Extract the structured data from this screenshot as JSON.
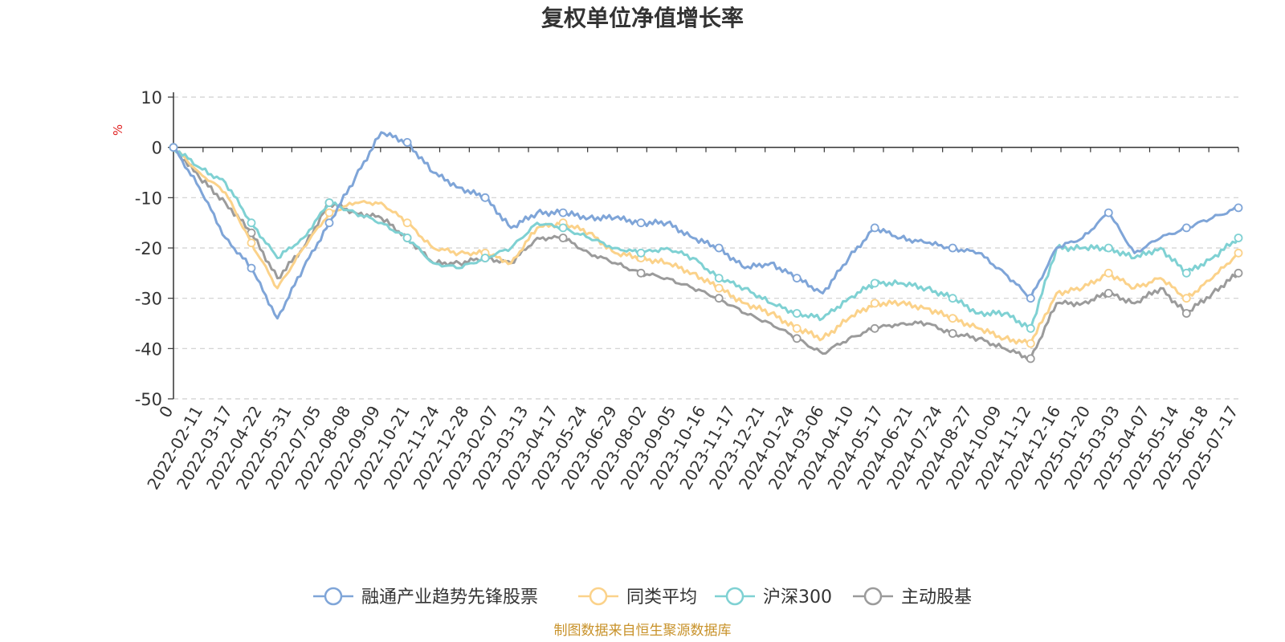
{
  "chart_data": {
    "type": "line",
    "title": "复权单位净值增长率",
    "ylabel": "%",
    "ylim": [
      -50,
      10
    ],
    "yticks": [
      10,
      0,
      -10,
      -20,
      -30,
      -40,
      -50
    ],
    "x_tick_labels": [
      "0",
      "2022-02-11",
      "2022-03-17",
      "2022-04-22",
      "2022-05-31",
      "2022-07-05",
      "2022-08-08",
      "2022-09-09",
      "2022-10-21",
      "2022-11-24",
      "2022-12-28",
      "2023-02-07",
      "2023-03-13",
      "2023-04-17",
      "2023-05-24",
      "2023-06-29",
      "2023-08-02",
      "2023-09-05",
      "2023-10-16",
      "2023-11-17",
      "2023-12-21",
      "2024-01-24",
      "2024-03-06",
      "2024-04-10",
      "2024-05-17",
      "2024-06-21",
      "2024-07-24",
      "2024-08-27",
      "2024-10-09",
      "2024-11-12",
      "2024-12-16",
      "2025-01-20",
      "2025-03-03",
      "2025-04-07",
      "2025-05-14",
      "2025-06-18",
      "2025-07-17"
    ],
    "grid": "horizontal dashed",
    "legend_position": "bottom",
    "series": [
      {
        "name": "融通产业趋势先锋股票",
        "color": "#7fa5d8",
        "values": [
          0,
          -8,
          -18,
          -24,
          -34,
          -24,
          -15,
          -6,
          3,
          1,
          -5,
          -8,
          -10,
          -16,
          -13,
          -13,
          -14,
          -14,
          -15,
          -15,
          -18,
          -20,
          -24,
          -23,
          -26,
          -29,
          -22,
          -16,
          -18,
          -19,
          -20,
          -21,
          -25,
          -30,
          -20,
          -18,
          -13,
          -21,
          -18,
          -16,
          -14,
          -12
        ]
      },
      {
        "name": "同类平均",
        "color": "#fbd28a",
        "values": [
          0,
          -5,
          -9,
          -19,
          -28,
          -20,
          -13,
          -11,
          -11,
          -15,
          -20,
          -21,
          -21,
          -23,
          -16,
          -15,
          -17,
          -21,
          -22,
          -23,
          -25,
          -28,
          -31,
          -33,
          -36,
          -38,
          -34,
          -31,
          -31,
          -32,
          -34,
          -36,
          -38,
          -39,
          -29,
          -28,
          -25,
          -28,
          -26,
          -30,
          -26,
          -21
        ]
      },
      {
        "name": "沪深300",
        "color": "#7fd1d3",
        "values": [
          0,
          -4,
          -7,
          -15,
          -22,
          -18,
          -11,
          -13,
          -15,
          -18,
          -23,
          -24,
          -22,
          -20,
          -15,
          -16,
          -18,
          -20,
          -21,
          -20,
          -22,
          -26,
          -28,
          -31,
          -33,
          -34,
          -30,
          -27,
          -27,
          -28,
          -30,
          -33,
          -33,
          -36,
          -20,
          -20,
          -20,
          -22,
          -20,
          -25,
          -22,
          -18
        ]
      },
      {
        "name": "主动股基",
        "color": "#9b9b9b",
        "values": [
          0,
          -6,
          -11,
          -17,
          -26,
          -20,
          -11,
          -13,
          -14,
          -18,
          -23,
          -23,
          -22,
          -23,
          -18,
          -18,
          -21,
          -23,
          -25,
          -26,
          -28,
          -30,
          -33,
          -35,
          -38,
          -41,
          -38,
          -36,
          -35,
          -35,
          -37,
          -38,
          -40,
          -42,
          -31,
          -31,
          -29,
          -31,
          -28,
          -33,
          -29,
          -25
        ]
      }
    ]
  },
  "source_text": "制图数据来自恒生聚源数据库"
}
